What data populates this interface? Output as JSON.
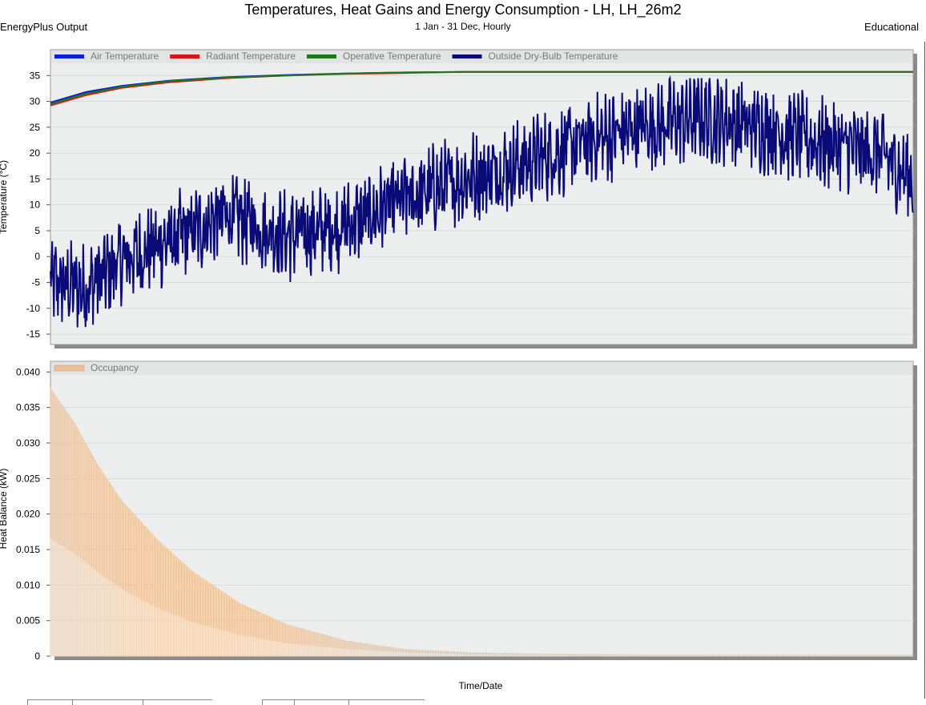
{
  "header": {
    "title": "Temperatures, Heat Gains and Energy Consumption - LH, LH_26m2",
    "subtitle": "1 Jan - 31 Dec, Hourly",
    "left_label": "EnergyPlus Output",
    "right_label": "Educational"
  },
  "chart_data": [
    {
      "type": "line",
      "ylabel": "Temperature  (°C)",
      "ylim": [
        -17,
        40
      ],
      "yticks": [
        35,
        30,
        25,
        20,
        15,
        10,
        5,
        0,
        -5,
        -10,
        -15
      ],
      "grid": true,
      "legend_position": "top",
      "x": [
        0,
        15,
        30,
        50,
        75,
        100,
        125,
        150,
        175,
        200,
        225,
        250,
        275,
        300,
        325,
        350,
        365
      ],
      "series": [
        {
          "name": "Air Temperature",
          "color": "#0a1fd6",
          "values": [
            29.8,
            31.8,
            33.0,
            34.0,
            34.7,
            35.1,
            35.4,
            35.6,
            35.7,
            35.7,
            35.7,
            35.7,
            35.7,
            35.7,
            35.7,
            35.7,
            35.7
          ]
        },
        {
          "name": "Radiant Temperature",
          "color": "#d41818",
          "values": [
            29.2,
            31.2,
            32.6,
            33.7,
            34.5,
            35.0,
            35.3,
            35.5,
            35.7,
            35.7,
            35.7,
            35.7,
            35.7,
            35.7,
            35.7,
            35.7,
            35.7
          ]
        },
        {
          "name": "Operative Temperature",
          "color": "#1a7a1a",
          "values": [
            29.5,
            31.5,
            32.8,
            33.9,
            34.6,
            35.0,
            35.4,
            35.6,
            35.7,
            35.7,
            35.7,
            35.7,
            35.7,
            35.7,
            35.7,
            35.7,
            35.7
          ]
        },
        {
          "name": "Outside Dry-Bulb Temperature",
          "color": "#0a0a78",
          "values": [
            -5,
            -6,
            -1,
            3,
            8,
            4,
            6,
            11,
            15,
            18,
            22,
            25,
            27,
            25,
            22,
            20,
            15
          ]
        }
      ]
    },
    {
      "type": "area",
      "ylabel": "Heat Balance (kW)",
      "xlabel": "Time/Date",
      "ylim": [
        0,
        0.0415
      ],
      "yticks": [
        "0.040",
        "0.035",
        "0.030",
        "0.025",
        "0.020",
        "0.015",
        "0.010",
        "0.005",
        "0"
      ],
      "grid": true,
      "legend_position": "top",
      "series": [
        {
          "name": "Occupancy",
          "color": "#e8c09a",
          "x": [
            0,
            10,
            20,
            30,
            45,
            60,
            80,
            100,
            125,
            150,
            180,
            220,
            260,
            300,
            365
          ],
          "upper": [
            0.0378,
            0.033,
            0.027,
            0.022,
            0.0165,
            0.012,
            0.0075,
            0.0045,
            0.0022,
            0.001,
            0.0005,
            0.0003,
            0.0002,
            0.0002,
            0.0002
          ],
          "lower": [
            0.0165,
            0.0145,
            0.0118,
            0.0095,
            0.0068,
            0.0048,
            0.003,
            0.0018,
            0.001,
            0.0005,
            0.0002,
            0.0001,
            0.0001,
            0.0001,
            0.0001
          ]
        }
      ]
    }
  ]
}
